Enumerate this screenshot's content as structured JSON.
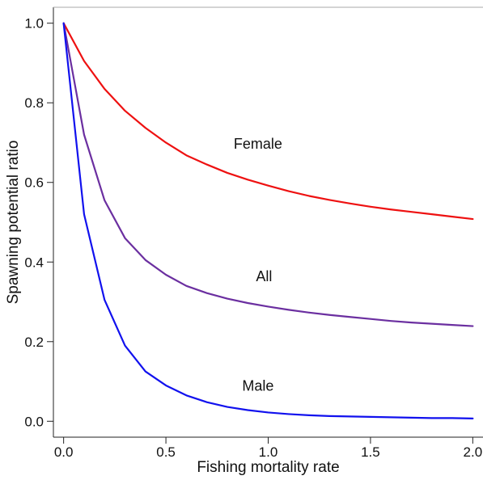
{
  "chart_data": {
    "type": "line",
    "title": "",
    "xlabel": "Fishing mortality rate",
    "ylabel": "Spawning potential ratio",
    "xlim": [
      -0.05,
      2.05
    ],
    "ylim": [
      -0.04,
      1.04
    ],
    "grid": false,
    "legend": "none",
    "x_ticks": [
      0.0,
      0.5,
      1.0,
      1.5,
      2.0
    ],
    "x_tick_labels": [
      "0.0",
      "0.5",
      "1.0",
      "1.5",
      "2.0"
    ],
    "y_ticks": [
      0.0,
      0.2,
      0.4,
      0.6,
      0.8,
      1.0
    ],
    "y_tick_labels": [
      "0.0",
      "0.2",
      "0.4",
      "0.6",
      "0.8",
      "1.0"
    ],
    "x": [
      0.0,
      0.1,
      0.2,
      0.3,
      0.4,
      0.5,
      0.6,
      0.7,
      0.8,
      0.9,
      1.0,
      1.1,
      1.2,
      1.3,
      1.4,
      1.5,
      1.6,
      1.7,
      1.8,
      1.9,
      2.0
    ],
    "series": [
      {
        "name": "Female",
        "color": "#ee1111",
        "label_x": 0.95,
        "label_y": 0.685,
        "values": [
          1.0,
          0.905,
          0.835,
          0.78,
          0.737,
          0.7,
          0.668,
          0.645,
          0.624,
          0.607,
          0.592,
          0.578,
          0.566,
          0.556,
          0.547,
          0.539,
          0.532,
          0.526,
          0.52,
          0.514,
          0.508
        ]
      },
      {
        "name": "All",
        "color": "#6b2fa0",
        "label_x": 0.98,
        "label_y": 0.352,
        "values": [
          1.0,
          0.72,
          0.555,
          0.46,
          0.405,
          0.368,
          0.34,
          0.322,
          0.308,
          0.297,
          0.288,
          0.28,
          0.273,
          0.267,
          0.262,
          0.257,
          0.252,
          0.248,
          0.245,
          0.242,
          0.239
        ]
      },
      {
        "name": "Male",
        "color": "#1111ee",
        "label_x": 0.95,
        "label_y": 0.077,
        "values": [
          1.0,
          0.52,
          0.305,
          0.19,
          0.125,
          0.09,
          0.065,
          0.048,
          0.036,
          0.028,
          0.022,
          0.018,
          0.015,
          0.013,
          0.012,
          0.011,
          0.01,
          0.009,
          0.008,
          0.008,
          0.007
        ]
      }
    ]
  }
}
